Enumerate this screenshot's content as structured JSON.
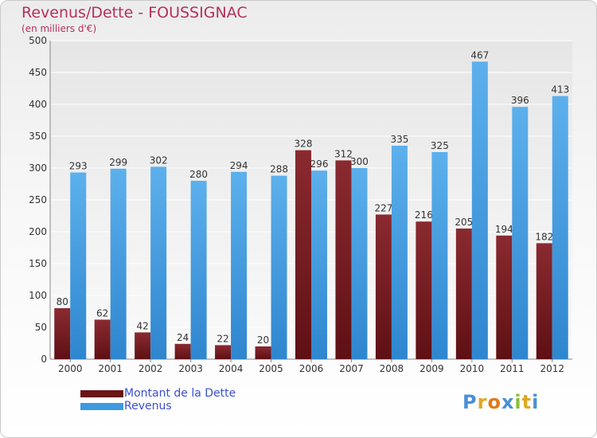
{
  "header": {
    "title": "Revenus/Dette - FOUSSIGNAC",
    "subtitle": "(en milliers d'€)"
  },
  "chart_data": {
    "type": "bar",
    "categories": [
      "2000",
      "2001",
      "2002",
      "2003",
      "2004",
      "2005",
      "2006",
      "2007",
      "2008",
      "2009",
      "2010",
      "2011",
      "2012"
    ],
    "series": [
      {
        "name": "Montant de la Dette",
        "values": [
          80,
          62,
          42,
          24,
          22,
          20,
          328,
          312,
          227,
          216,
          205,
          194,
          182
        ],
        "color": "#7a1f24"
      },
      {
        "name": "Revenus",
        "values": [
          293,
          299,
          302,
          280,
          294,
          288,
          296,
          300,
          335,
          325,
          467,
          396,
          413
        ],
        "color": "#4aa3e3"
      }
    ],
    "yticks": [
      0,
      50,
      100,
      150,
      200,
      250,
      300,
      350,
      400,
      450,
      500
    ],
    "ylim": [
      0,
      500
    ],
    "grid": true,
    "legend": "bottom-left"
  },
  "logo": {
    "letters": [
      "P",
      "r",
      "o",
      "x",
      "i",
      "t",
      "i"
    ],
    "colors": [
      "#4a8fd6",
      "#e0a820",
      "#e07a1a",
      "#4a8fd6",
      "#8bbf3a",
      "#e0a820",
      "#4a8fd6"
    ]
  }
}
